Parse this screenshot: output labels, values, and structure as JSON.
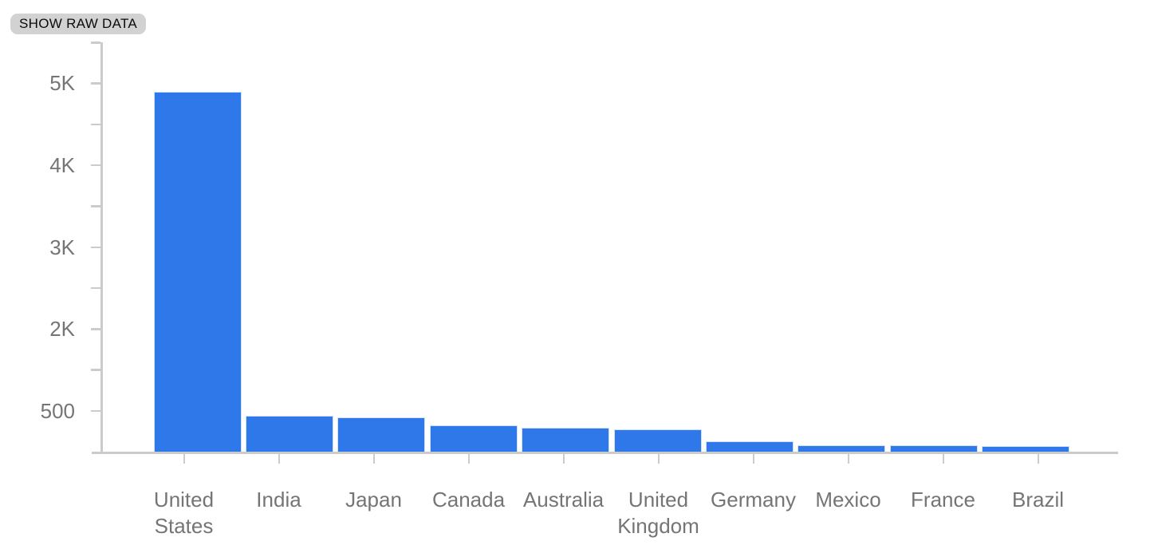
{
  "toolbar": {
    "show_raw_data_label": "SHOW RAW DATA"
  },
  "colors": {
    "bar": "#2e78ea",
    "bar_border": "#cfe0f8",
    "axis": "#cbcbcb",
    "tick": "#cccccc",
    "axis_label": "#757575",
    "chip_bg": "#d2d2d2",
    "chip_text": "#0b0b0b"
  },
  "chart_data": {
    "type": "bar",
    "title": "",
    "xlabel": "",
    "ylabel": "",
    "categories": [
      "United States",
      "India",
      "Japan",
      "Canada",
      "Australia",
      "United Kingdom",
      "Germany",
      "Mexico",
      "France",
      "Brazil"
    ],
    "values": [
      4870,
      490,
      460,
      360,
      320,
      300,
      140,
      90,
      88,
      80
    ],
    "y_axis_tick_labels": [
      "5K",
      "4K",
      "3K",
      "2K",
      "500"
    ],
    "ylim": [
      0,
      5000
    ],
    "grid": "off",
    "legend": "none",
    "bar_color": "#2e78ea"
  }
}
